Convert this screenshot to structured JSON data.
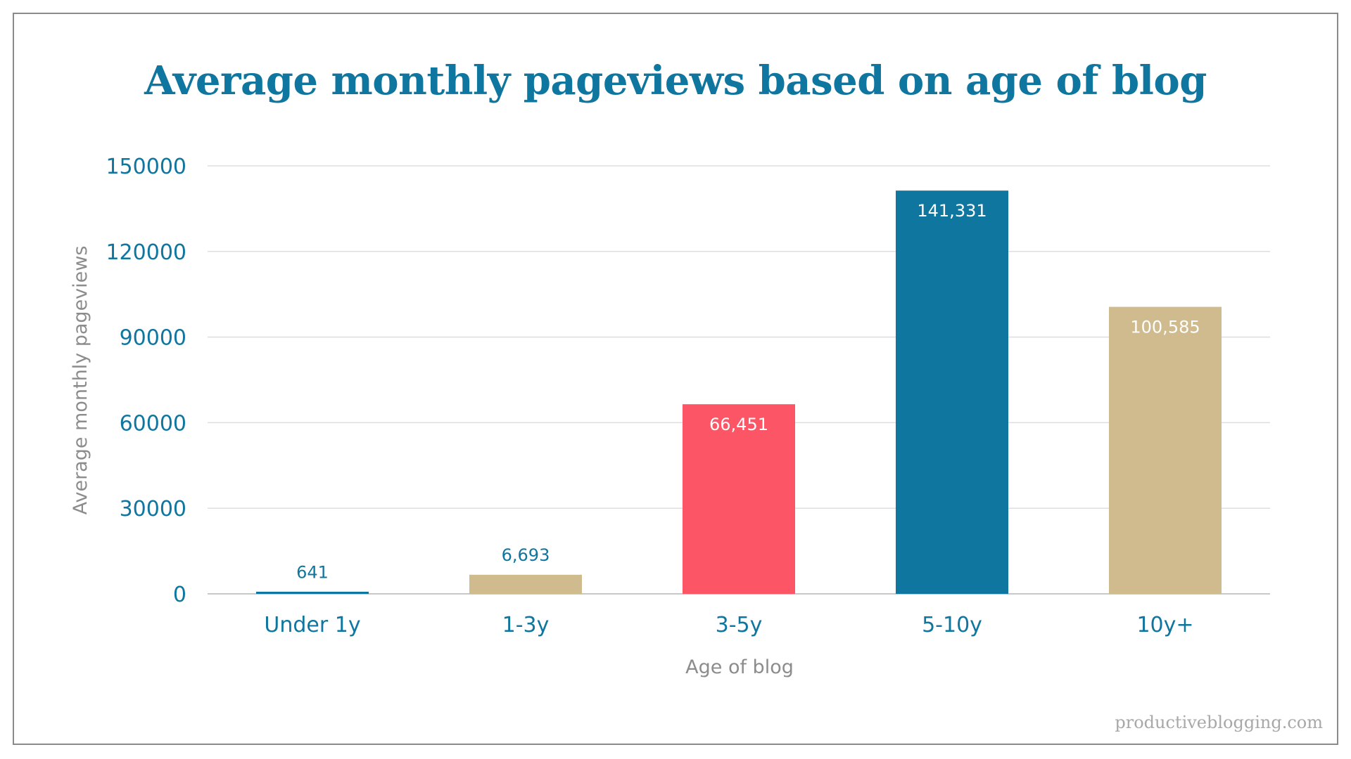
{
  "chart_data": {
    "type": "bar",
    "title": "Average monthly pageviews based on age of blog",
    "xlabel": "Age of blog",
    "ylabel": "Average monthly pageviews",
    "categories": [
      "Under 1y",
      "1-3y",
      "3-5y",
      "5-10y",
      "10y+"
    ],
    "values": [
      641,
      6693,
      66451,
      141331,
      100585
    ],
    "data_labels": [
      "641",
      "6,693",
      "66,451",
      "141,331",
      "100,585"
    ],
    "yticks": [
      "0",
      "30000",
      "60000",
      "90000",
      "120000",
      "150000"
    ],
    "ylim": [
      0,
      150000
    ],
    "grid": true,
    "legend": "none",
    "bar_colors": [
      "#0f76a0",
      "#cfbb8e",
      "#fc5566",
      "#0f76a0",
      "#cfbb8e"
    ],
    "label_colors": [
      "#0f76a0",
      "#0f76a0",
      "#ffffff",
      "#ffffff",
      "#ffffff"
    ]
  },
  "watermark": "productiveblogging.com"
}
